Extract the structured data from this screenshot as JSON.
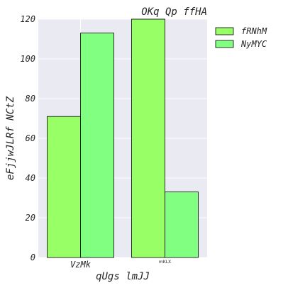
{
  "chart_data": {
    "type": "bar",
    "title": "OKq Qp ffHA",
    "xlabel": "qUgs lmJJ",
    "ylabel": "eFjjwJLRf NCtZ",
    "categories": [
      "VzMk",
      "mKLX"
    ],
    "series": [
      {
        "name": "fRNhM",
        "values": [
          71,
          120
        ],
        "color": "#99ff66"
      },
      {
        "name": "NyMYC",
        "values": [
          113,
          33
        ],
        "color": "#80ff80"
      }
    ],
    "ylim": [
      0,
      120
    ],
    "yticks": [
      0,
      20,
      40,
      60,
      80,
      100,
      120
    ],
    "grid": true,
    "legend_position": "outside-top-right",
    "background": "#eaeaf2"
  }
}
